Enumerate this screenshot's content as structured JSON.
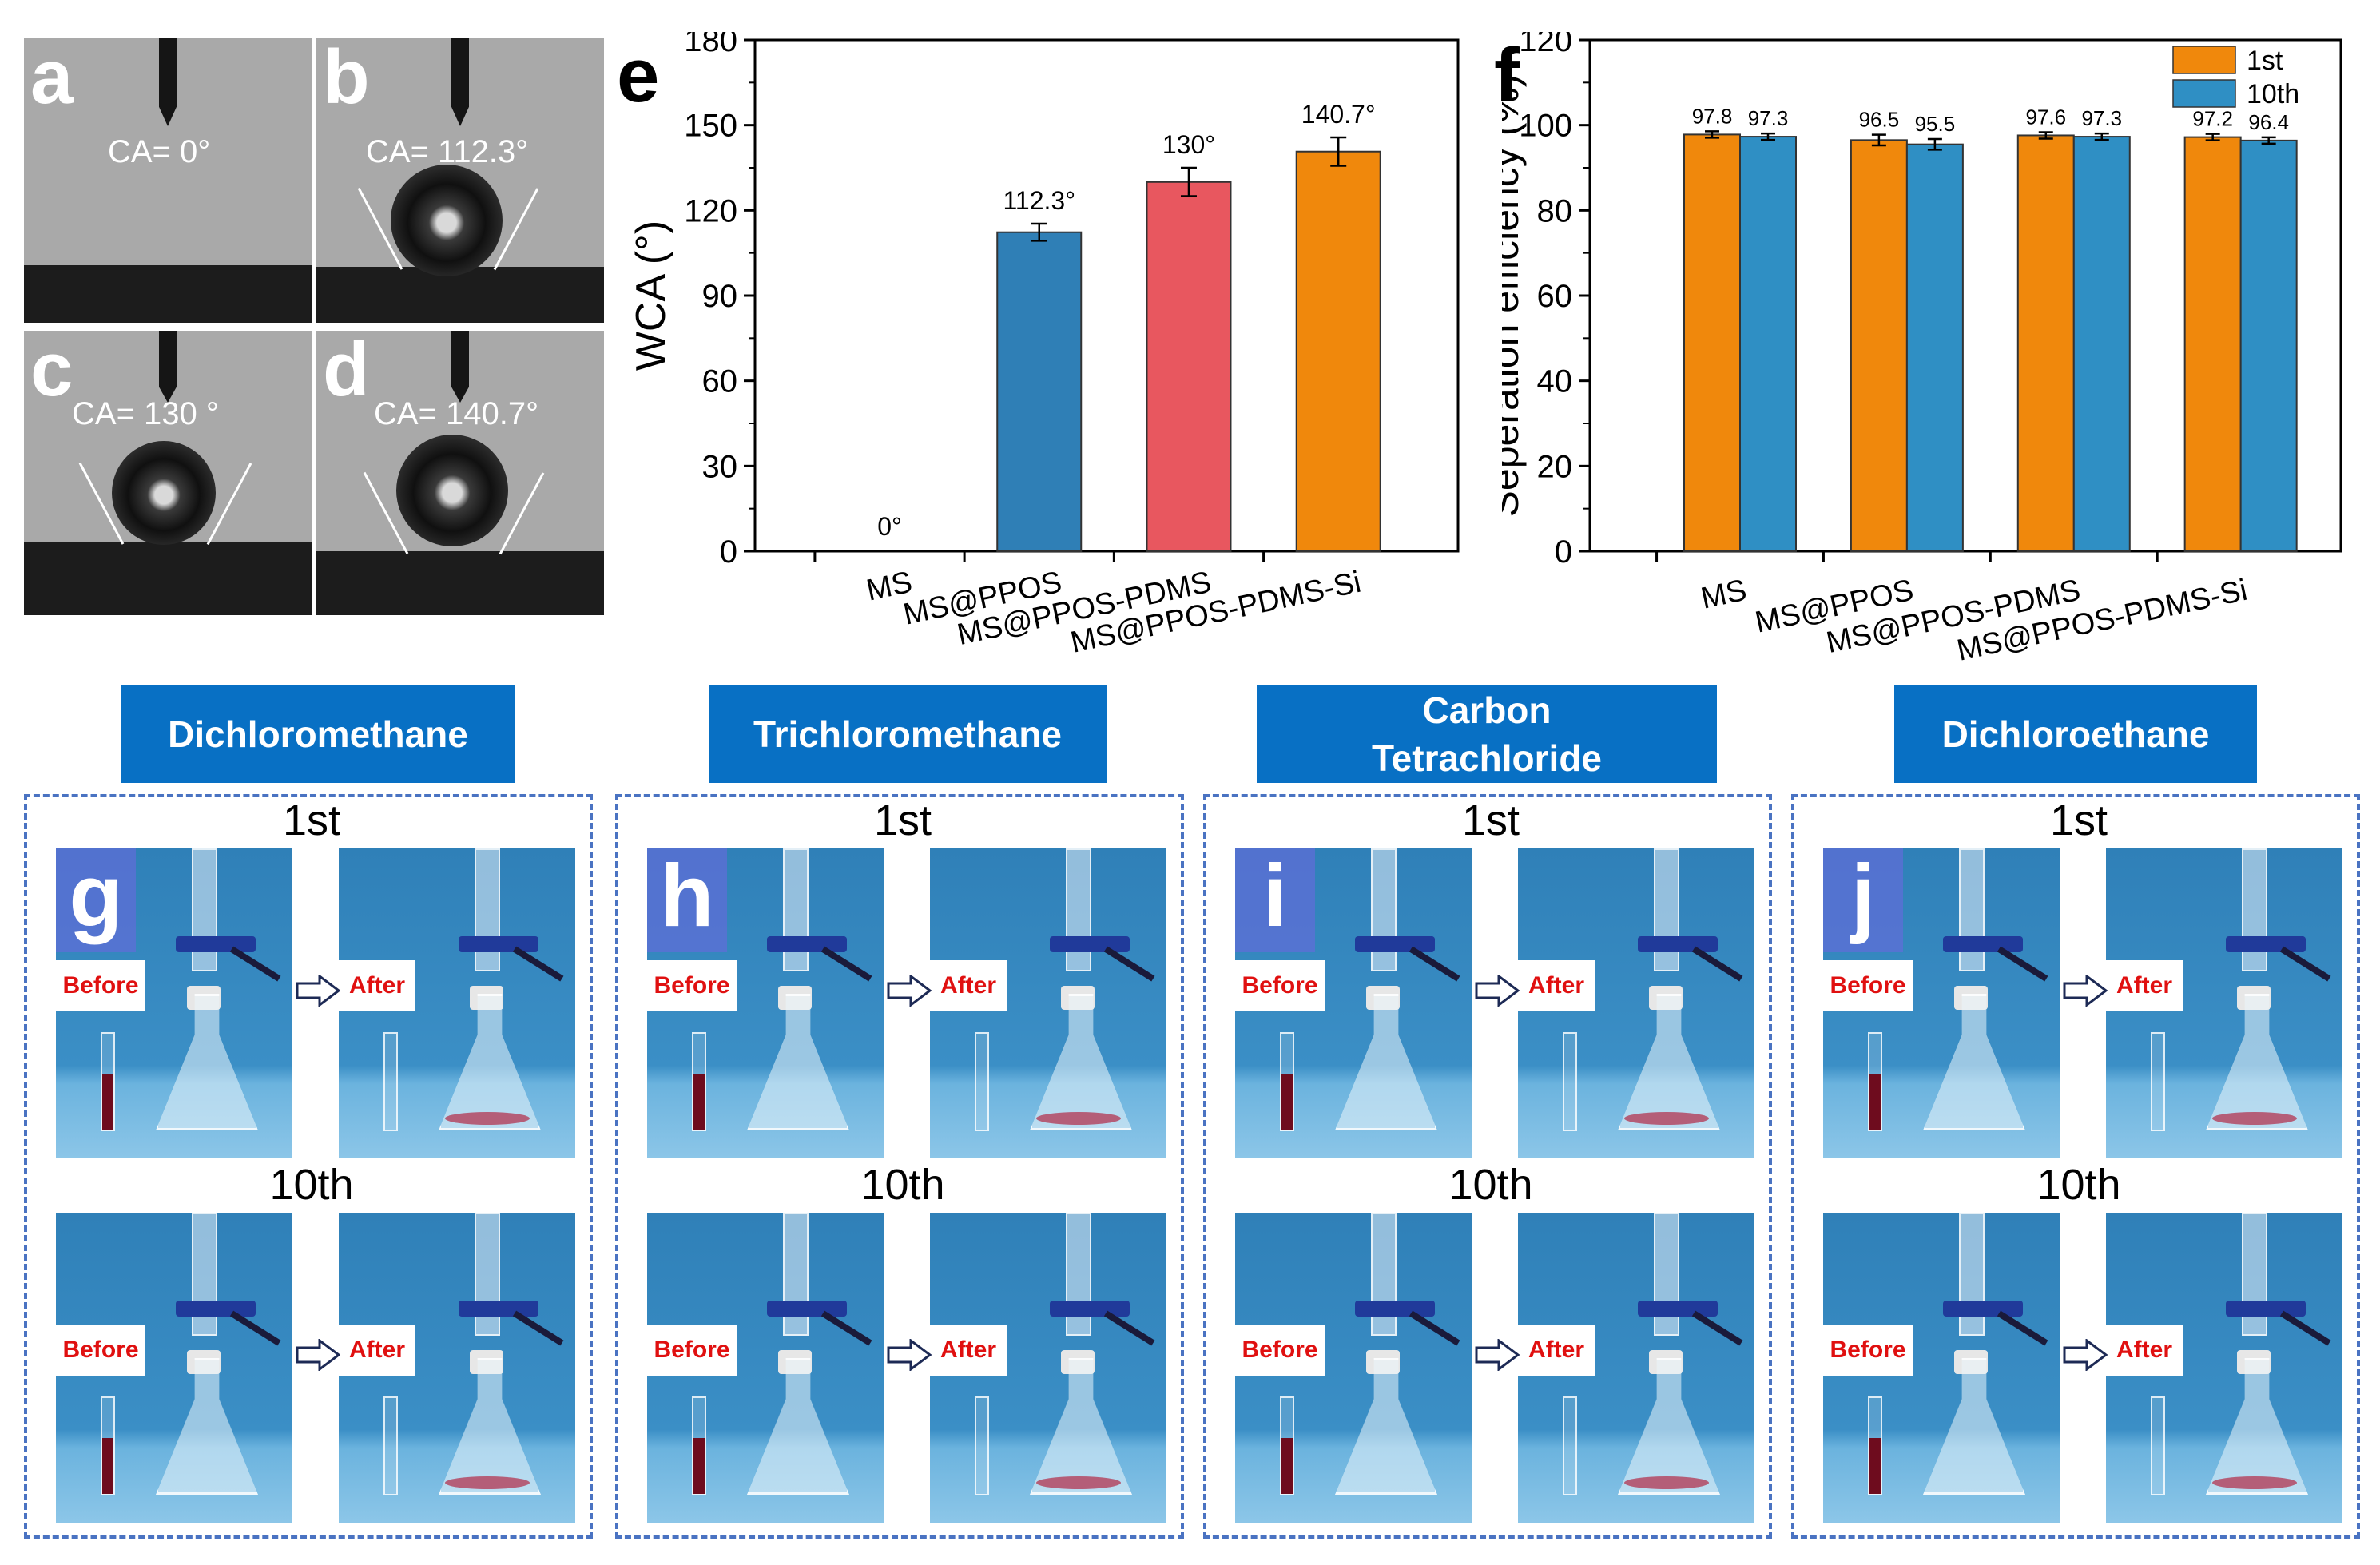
{
  "ca_panels": [
    {
      "letter": "a",
      "label": "CA= 0°"
    },
    {
      "letter": "b",
      "label": "CA= 112.3°"
    },
    {
      "letter": "c",
      "label": "CA= 130 °"
    },
    {
      "letter": "d",
      "label": "CA= 140.7°"
    }
  ],
  "chart_data": [
    {
      "panel": "e",
      "type": "bar",
      "categories": [
        "MS",
        "MS@PPOS",
        "MS@PPOS-PDMS",
        "MS@PPOS-PDMS-Si"
      ],
      "values": [
        0,
        112.3,
        130,
        140.7
      ],
      "errors": [
        0,
        3,
        5,
        5
      ],
      "data_labels": [
        "0°",
        "112.3°",
        "130°",
        "140.7°"
      ],
      "colors": [
        "#2f7fb6",
        "#2f7fb6",
        "#e8575f",
        "#f0880c"
      ],
      "ylabel": "WCA (°)",
      "ylim": [
        0,
        180
      ],
      "yticks": [
        0,
        30,
        60,
        90,
        120,
        150,
        180
      ]
    },
    {
      "panel": "f",
      "type": "bar",
      "categories": [
        "MS",
        "MS@PPOS",
        "MS@PPOS-PDMS",
        "MS@PPOS-PDMS-Si"
      ],
      "series": [
        {
          "name": "1st",
          "values": [
            97.8,
            96.5,
            97.6,
            97.2
          ],
          "labels": [
            "97.8",
            "96.5",
            "97.6",
            "97.2"
          ],
          "color": "#f0880c"
        },
        {
          "name": "10th",
          "values": [
            97.3,
            95.5,
            97.3,
            96.4
          ],
          "labels": [
            "97.3",
            "95.5",
            "97.3",
            "96.4"
          ],
          "color": "#2f8fc4"
        }
      ],
      "errors": [
        1.5,
        2.5,
        1.5,
        1.5
      ],
      "ylabel": "Seperation efficiency (%)",
      "ylim": [
        0,
        120
      ],
      "yticks": [
        0,
        20,
        40,
        60,
        80,
        100,
        120
      ],
      "legend_position": "top-right"
    }
  ],
  "separation": {
    "solvents": [
      "Dichloromethane",
      "Trichloromethane",
      "Carbon Tetrachloride",
      "Dichloroethane"
    ],
    "solvent_lines": [
      [
        "Dichloromethane"
      ],
      [
        "Trichloromethane"
      ],
      [
        "Carbon",
        "Tetrachloride"
      ],
      [
        "Dichloroethane"
      ]
    ],
    "panel_letters": [
      "g",
      "h",
      "i",
      "j"
    ],
    "round_labels": [
      "1st",
      "10th"
    ],
    "before_label": "Before",
    "after_label": "After"
  }
}
